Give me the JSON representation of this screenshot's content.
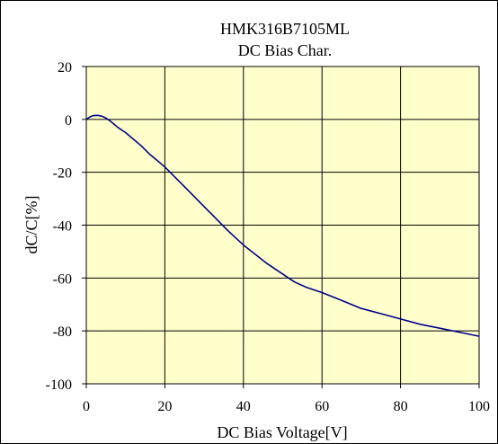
{
  "chart_data": {
    "type": "line",
    "title": "HMK316B7105ML",
    "subtitle": "DC Bias Char.",
    "xlabel": "DC Bias Voltage[V]",
    "ylabel": "dC/C[%]",
    "xlim": [
      0,
      100
    ],
    "ylim": [
      -100,
      20
    ],
    "xticks": [
      "0",
      "20",
      "40",
      "60",
      "80",
      "100"
    ],
    "yticks": [
      "20",
      "0",
      "-20",
      "-40",
      "-60",
      "-80",
      "-100"
    ],
    "grid": true,
    "legend": "none",
    "series": [
      {
        "x": [
          0,
          1,
          2,
          3,
          4,
          5,
          6,
          8,
          10,
          12,
          14,
          16,
          18,
          20,
          22,
          25,
          28,
          30,
          33,
          36,
          40,
          43,
          46,
          50,
          53,
          56,
          60,
          65,
          70,
          75,
          80,
          85,
          90,
          95,
          100
        ],
        "y": [
          0,
          1,
          1.5,
          1.5,
          1.2,
          0.5,
          -0.5,
          -3,
          -5,
          -7.5,
          -10,
          -13,
          -15.5,
          -18,
          -21,
          -25.5,
          -30,
          -33,
          -37.5,
          -42,
          -47.5,
          -51,
          -54.5,
          -58.5,
          -61.5,
          -63.5,
          -65.5,
          -68.5,
          -71.5,
          -73.5,
          -75.5,
          -77.5,
          -79,
          -80.5,
          -82
        ]
      }
    ],
    "colors": {
      "plot_background": "#ffffcc",
      "line": "#00008b",
      "grid": "#000000"
    }
  }
}
